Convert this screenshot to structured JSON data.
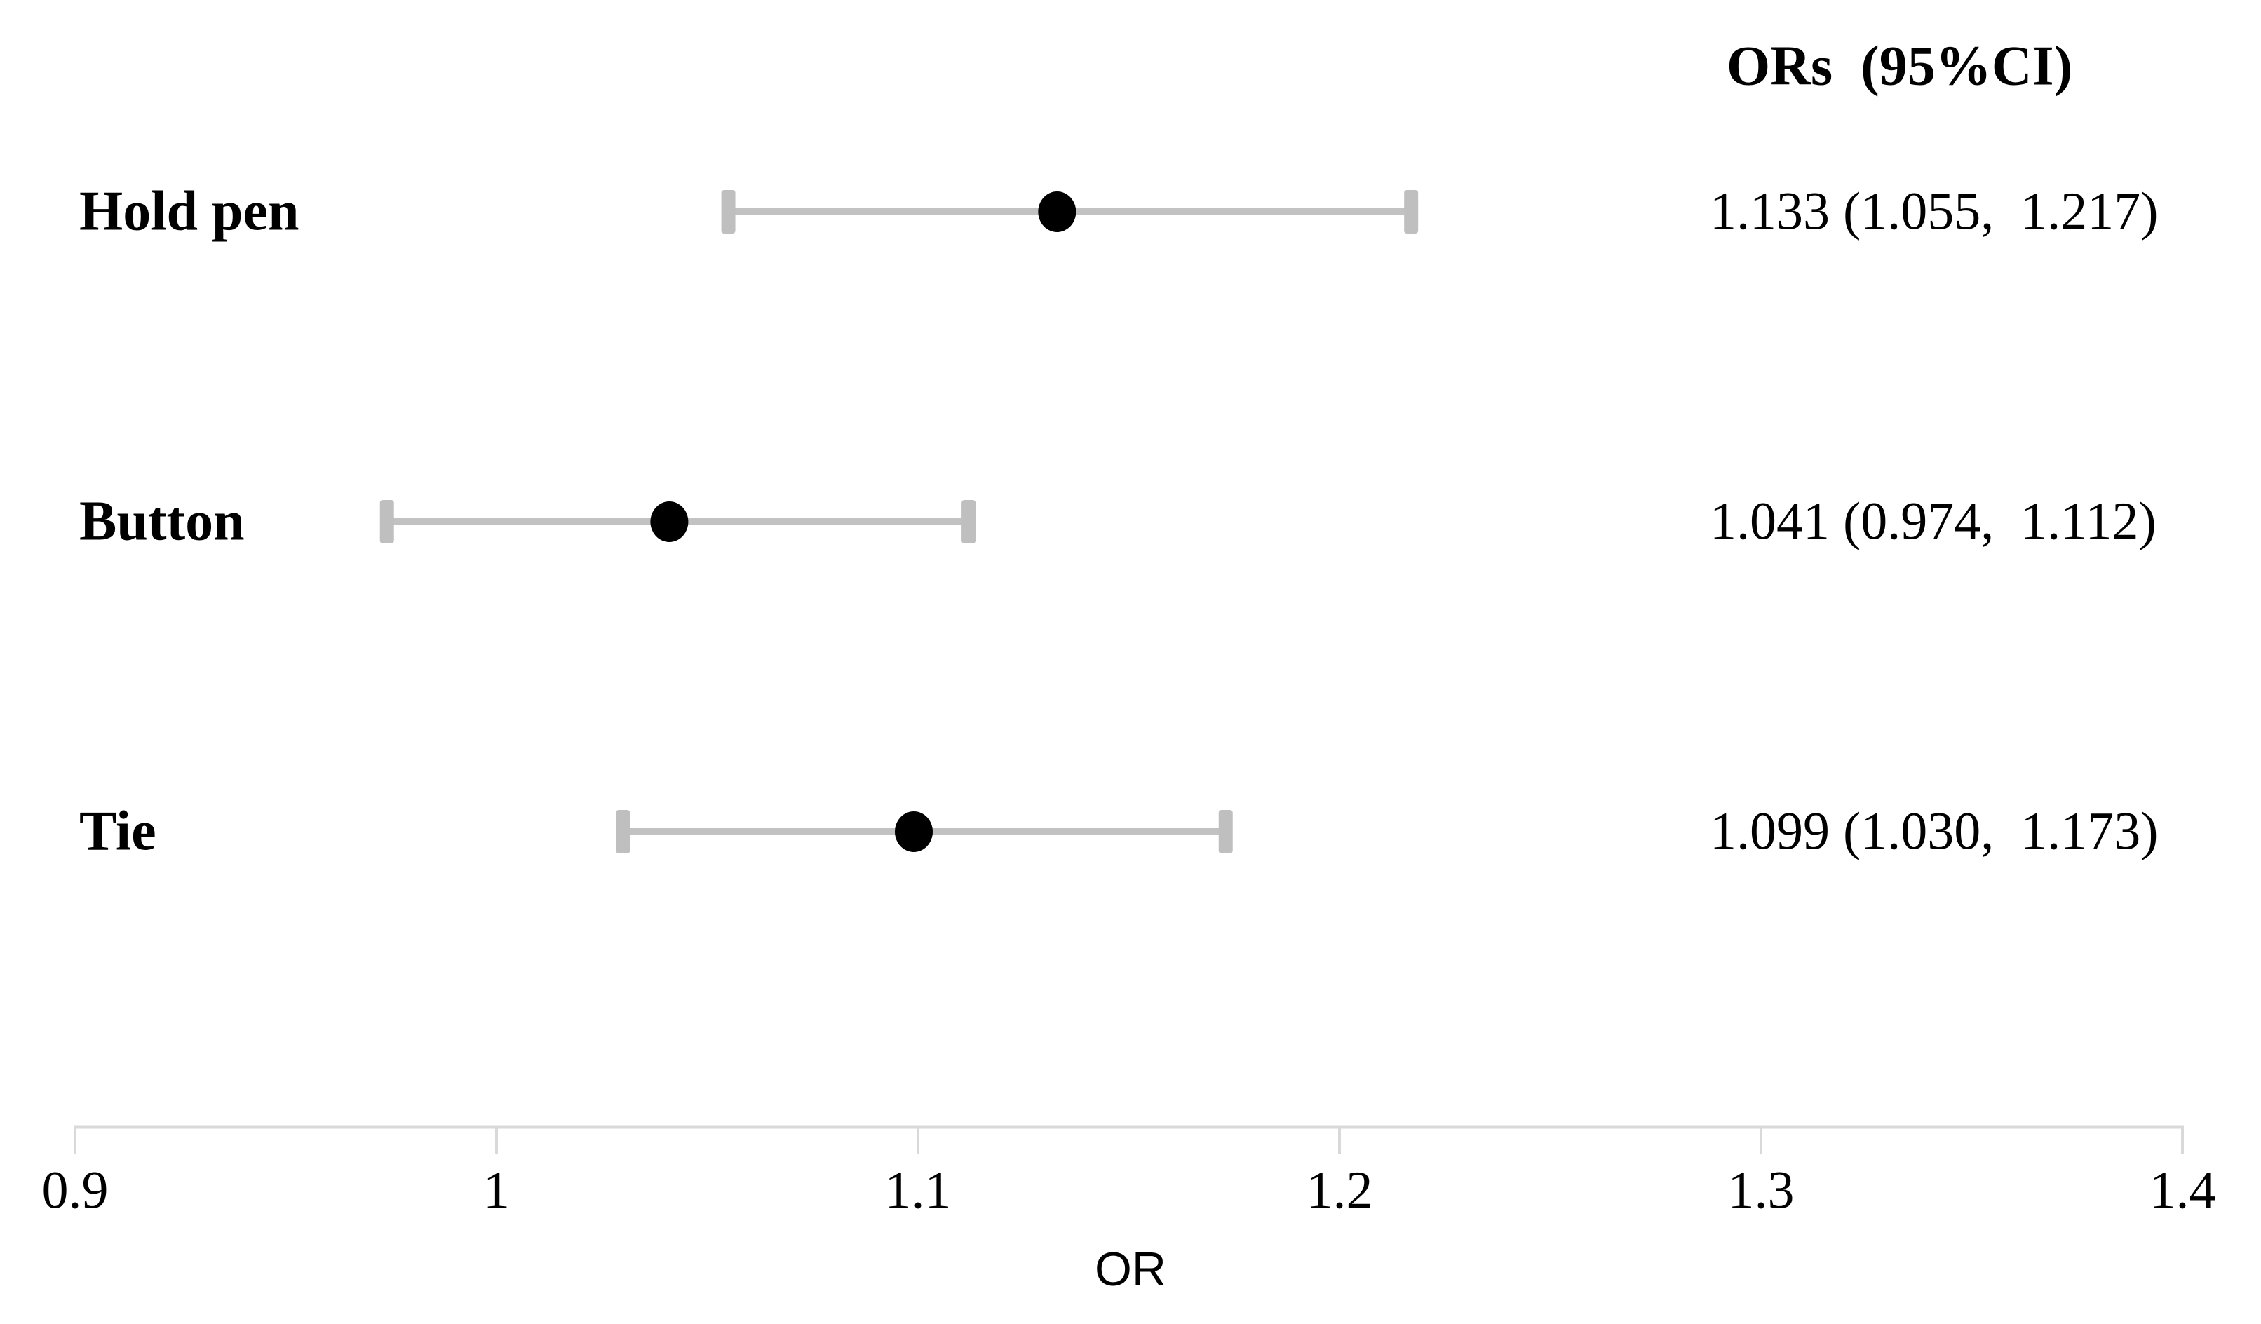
{
  "header": {
    "ors_column_title": "ORs  (95%CI)"
  },
  "chart_data": {
    "type": "forest",
    "title": "",
    "xlabel": "OR",
    "axis": {
      "min": 0.9,
      "max": 1.4,
      "ticks": [
        {
          "value": 0.9,
          "label": "0.9"
        },
        {
          "value": 1.0,
          "label": "1"
        },
        {
          "value": 1.1,
          "label": "1.1"
        },
        {
          "value": 1.2,
          "label": "1.2"
        },
        {
          "value": 1.3,
          "label": "1.3"
        },
        {
          "value": 1.4,
          "label": "1.4"
        }
      ]
    },
    "rows": [
      {
        "category": "Hold pen",
        "or": 1.133,
        "ci_low": 1.055,
        "ci_high": 1.217,
        "display": "1.133 (1.055,  1.217)"
      },
      {
        "category": "Button",
        "or": 1.041,
        "ci_low": 0.974,
        "ci_high": 1.112,
        "display": "1.041 (0.974,  1.112)"
      },
      {
        "category": "Tie",
        "or": 1.099,
        "ci_low": 1.03,
        "ci_high": 1.173,
        "display": "1.099 (1.030,  1.173)"
      }
    ],
    "colors": {
      "ci_line": "#c2c2c2",
      "ci_cap": "#bfbfbf",
      "marker": "#000000",
      "axis": "#d9d9d9",
      "text": "#000000"
    },
    "legend": null,
    "grid": false
  }
}
